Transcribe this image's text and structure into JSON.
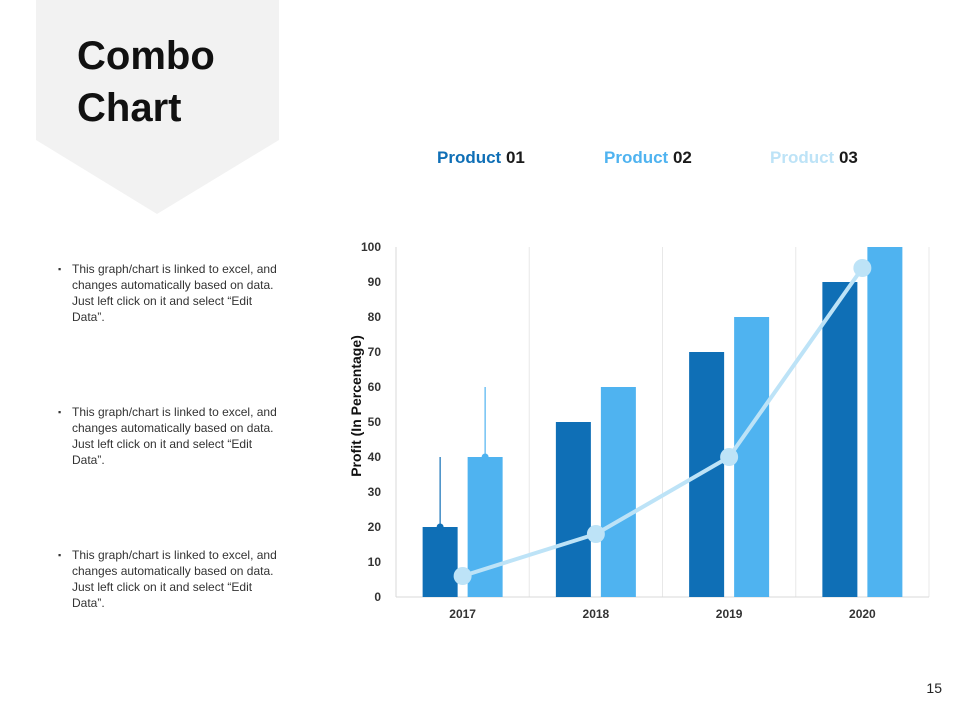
{
  "slide": {
    "title_line1": "Combo",
    "title_line2": "Chart",
    "page_number": "15",
    "bullets": [
      "This graph/chart is linked to excel, and changes automatically based on data. Just left click on it and select “Edit Data”.",
      "This graph/chart is linked to excel, and changes automatically based on data. Just left click on it and select “Edit Data”.",
      "This graph/chart is linked to excel, and changes automatically based on data. Just left click on it and select “Edit Data”."
    ],
    "bullet_mark": "▪"
  },
  "legend": [
    {
      "name": "Product",
      "num": "01",
      "color": "#0f6fb6"
    },
    {
      "name": "Product",
      "num": "02",
      "color": "#4fb3f0"
    },
    {
      "name": "Product",
      "num": "03",
      "color": "#bde3f7"
    }
  ],
  "chart_data": {
    "type": "bar",
    "title": "",
    "xlabel": "",
    "ylabel": "Profit (In Percentage)",
    "ylim": [
      0,
      100
    ],
    "yticks": [
      0,
      10,
      20,
      30,
      40,
      50,
      60,
      70,
      80,
      90,
      100
    ],
    "categories": [
      "2017",
      "2018",
      "2019",
      "2020"
    ],
    "series": [
      {
        "name": "Product 01",
        "kind": "bar",
        "color": "#0f6fb6",
        "values": [
          20,
          50,
          70,
          90
        ],
        "error_upper": [
          20,
          0,
          0,
          0
        ]
      },
      {
        "name": "Product 02",
        "kind": "bar",
        "color": "#4fb3f0",
        "values": [
          40,
          60,
          80,
          100
        ],
        "error_upper": [
          20,
          0,
          0,
          0
        ]
      },
      {
        "name": "Product 03",
        "kind": "line",
        "color": "#bde3f7",
        "values": [
          6,
          18,
          40,
          94
        ]
      }
    ],
    "grid": "vertical separators",
    "legend_position": "top"
  }
}
